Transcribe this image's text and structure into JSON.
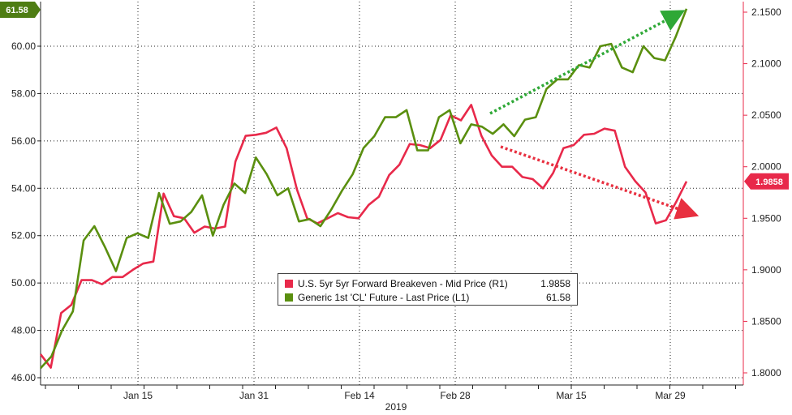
{
  "chart_data": {
    "type": "line",
    "xlabel": "2019",
    "x_ticks": [
      "Jan 15",
      "Jan 31",
      "Feb 14",
      "Feb 28",
      "Mar 15",
      "Mar 29"
    ],
    "y_left": {
      "ticks": [
        "46.00",
        "48.00",
        "50.00",
        "52.00",
        "54.00",
        "56.00",
        "58.00",
        "60.00"
      ],
      "ylim": [
        45.9,
        61.8
      ]
    },
    "y_right": {
      "ticks": [
        "1.8000",
        "1.8500",
        "1.9000",
        "1.9500",
        "2.0000",
        "2.0500",
        "2.1000",
        "2.1500"
      ],
      "ylim": [
        1.795,
        2.16
      ]
    },
    "grid": true,
    "series": [
      {
        "name": "U.S. 5yr 5yr Forward Breakeven - Mid Price (R1)",
        "axis": "right",
        "color": "#e8294a",
        "last_value": "1.9858",
        "values": [
          1.818,
          1.805,
          1.858,
          1.866,
          1.89,
          1.89,
          1.886,
          1.893,
          1.893,
          1.9,
          1.906,
          1.908,
          1.974,
          1.952,
          1.95,
          1.936,
          1.942,
          1.94,
          1.942,
          2.005,
          2.03,
          2.031,
          2.033,
          2.038,
          2.018,
          1.978,
          1.95,
          1.945,
          1.95,
          1.955,
          1.951,
          1.95,
          1.963,
          1.971,
          1.992,
          2.002,
          2.022,
          2.021,
          2.018,
          2.026,
          2.05,
          2.045,
          2.06,
          2.03,
          2.011,
          2.0,
          2.0,
          1.99,
          1.988,
          1.979,
          1.994,
          2.018,
          2.021,
          2.031,
          2.032,
          2.037,
          2.035,
          2.0,
          1.986,
          1.975,
          1.945,
          1.948,
          1.966,
          1.9858
        ]
      },
      {
        "name": "Generic 1st 'CL' Future - Last Price (L1)",
        "axis": "left",
        "color": "#5a8f0f",
        "last_value": "61.58",
        "values": [
          46.4,
          46.9,
          48.0,
          48.8,
          51.8,
          52.4,
          51.5,
          50.5,
          51.9,
          52.1,
          51.9,
          53.8,
          52.5,
          52.6,
          53.0,
          53.7,
          52.0,
          53.3,
          54.2,
          53.8,
          55.3,
          54.6,
          53.7,
          54.0,
          52.6,
          52.7,
          52.4,
          53.1,
          53.9,
          54.6,
          55.7,
          56.2,
          57.0,
          57.0,
          57.3,
          55.6,
          55.6,
          57.0,
          57.3,
          55.9,
          56.7,
          56.6,
          56.3,
          56.7,
          56.2,
          56.9,
          57.0,
          58.2,
          58.6,
          58.6,
          59.2,
          59.1,
          60.0,
          60.1,
          59.1,
          58.9,
          60.0,
          59.5,
          59.4,
          60.4,
          61.58
        ]
      }
    ],
    "annotations": [
      {
        "type": "arrow",
        "style": "dotted",
        "color": "#2ea836",
        "direction": "up-right"
      },
      {
        "type": "arrow",
        "style": "dotted",
        "color": "#e83040",
        "direction": "down-right"
      }
    ],
    "legend_placement": "bottom-center"
  },
  "badges": {
    "left_last": {
      "text": "61.58",
      "color": "#4e7d13"
    },
    "right_last": {
      "text": "1.9858",
      "color": "#e8294a"
    }
  },
  "legend": {
    "rows": [
      {
        "name": "U.S. 5yr 5yr Forward Breakeven - Mid Price (R1)",
        "value": "1.9858",
        "color": "#e8294a"
      },
      {
        "name": "Generic 1st 'CL' Future - Last Price (L1)",
        "value": "61.58",
        "color": "#5a8f0f"
      }
    ]
  }
}
